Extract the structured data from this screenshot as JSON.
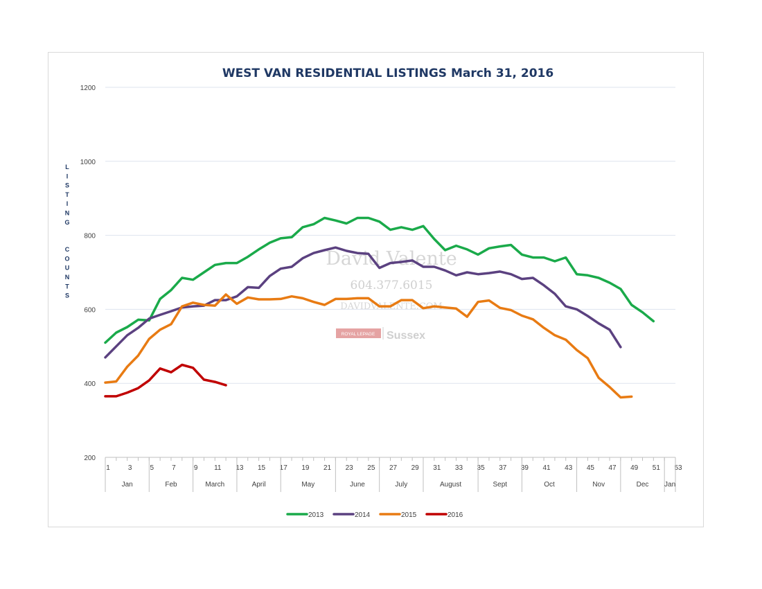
{
  "watermark": {
    "name": "David Valente",
    "phone": "604.377.6015",
    "website": "DAVIDVALENTE.COM",
    "brokerage": "ROYAL LEPAGE",
    "brokerage_region": "Sussex"
  },
  "chart_data": {
    "type": "line",
    "title": "WEST VAN RESIDENTIAL LISTINGS March 31, 2016",
    "ylabel": "LISTING COUNTS",
    "xlabel": "",
    "ylim": [
      200,
      1200
    ],
    "yticks": [
      200,
      400,
      600,
      800,
      1000,
      1200
    ],
    "xlim": [
      1,
      53
    ],
    "xticks": [
      1,
      3,
      5,
      7,
      9,
      11,
      13,
      15,
      17,
      19,
      21,
      23,
      25,
      27,
      29,
      31,
      33,
      35,
      37,
      39,
      41,
      43,
      45,
      47,
      49,
      51,
      53
    ],
    "months": [
      {
        "label": "Jan",
        "start": 1,
        "end": 5
      },
      {
        "label": "Feb",
        "start": 5,
        "end": 9
      },
      {
        "label": "March",
        "start": 9,
        "end": 13
      },
      {
        "label": "April",
        "start": 13,
        "end": 17
      },
      {
        "label": "May",
        "start": 17,
        "end": 22
      },
      {
        "label": "June",
        "start": 22,
        "end": 26
      },
      {
        "label": "July",
        "start": 26,
        "end": 30
      },
      {
        "label": "August",
        "start": 30,
        "end": 35
      },
      {
        "label": "Sept",
        "start": 35,
        "end": 39
      },
      {
        "label": "Oct",
        "start": 39,
        "end": 44
      },
      {
        "label": "Nov",
        "start": 44,
        "end": 48
      },
      {
        "label": "Dec",
        "start": 48,
        "end": 52
      },
      {
        "label": "Jan",
        "start": 52,
        "end": 53
      }
    ],
    "grid": true,
    "legend_position": "bottom",
    "series": [
      {
        "name": "2013",
        "color": "#1aaa4a",
        "start_week": 1,
        "values": [
          510,
          537,
          552,
          572,
          570,
          628,
          652,
          685,
          680,
          700,
          720,
          725,
          725,
          742,
          762,
          780,
          792,
          795,
          822,
          830,
          847,
          840,
          832,
          847,
          847,
          837,
          815,
          822,
          815,
          825,
          790,
          760,
          772,
          762,
          748,
          765,
          770,
          774,
          748,
          740,
          740,
          730,
          740,
          695,
          692,
          685,
          672,
          655,
          612,
          592,
          568
        ]
      },
      {
        "name": "2014",
        "color": "#5b4180",
        "start_week": 1,
        "values": [
          470,
          500,
          530,
          550,
          575,
          585,
          595,
          605,
          608,
          610,
          625,
          625,
          635,
          660,
          658,
          690,
          710,
          715,
          738,
          752,
          760,
          767,
          758,
          752,
          750,
          712,
          725,
          728,
          732,
          715,
          715,
          705,
          692,
          700,
          695,
          698,
          702,
          695,
          682,
          685,
          665,
          642,
          608,
          600,
          582,
          562,
          545,
          498
        ]
      },
      {
        "name": "2015",
        "color": "#e87b13",
        "start_week": 1,
        "values": [
          402,
          405,
          445,
          475,
          520,
          545,
          560,
          608,
          618,
          612,
          610,
          640,
          615,
          632,
          627,
          627,
          628,
          635,
          630,
          620,
          612,
          628,
          628,
          630,
          630,
          608,
          608,
          625,
          625,
          603,
          608,
          605,
          602,
          580,
          620,
          624,
          604,
          598,
          583,
          573,
          550,
          530,
          518,
          490,
          468,
          415,
          390,
          362,
          364
        ]
      },
      {
        "name": "2016",
        "color": "#c00000",
        "start_week": 1,
        "values": [
          365,
          365,
          375,
          387,
          408,
          440,
          430,
          450,
          442,
          410,
          404,
          395
        ]
      }
    ]
  }
}
